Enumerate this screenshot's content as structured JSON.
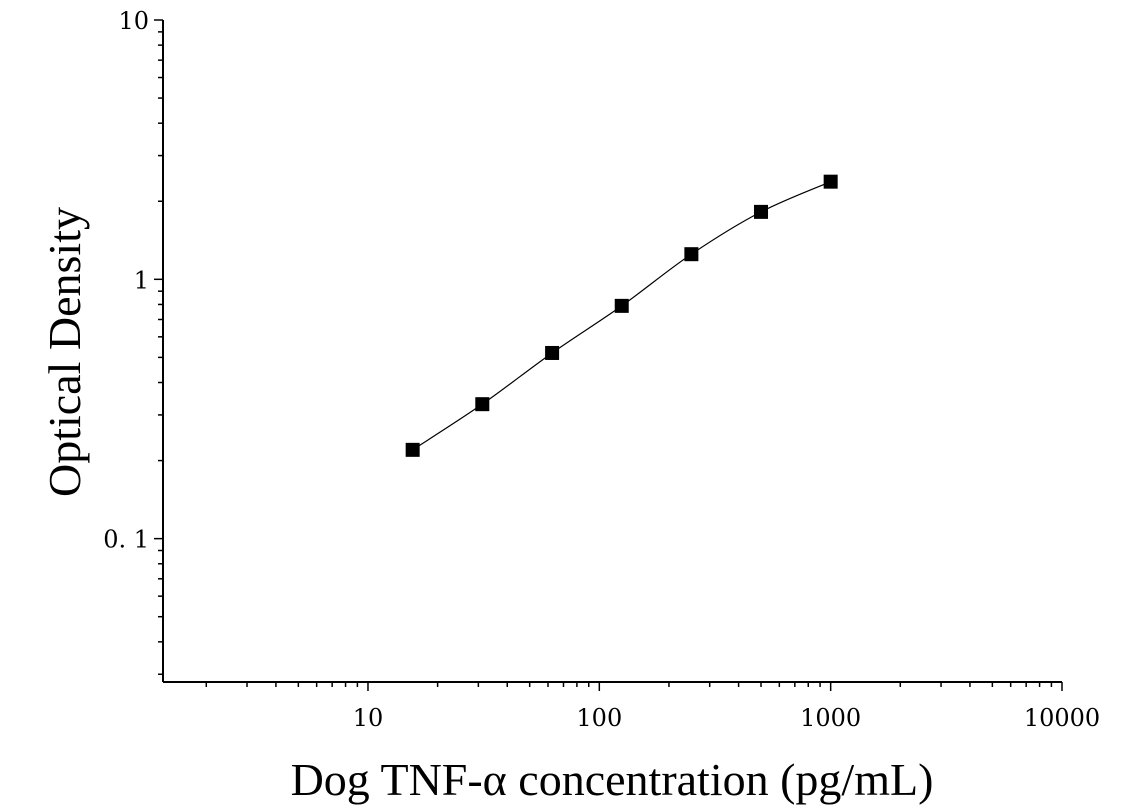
{
  "chart_data": {
    "type": "scatter",
    "title": "",
    "xlabel": "Dog TNF-α concentration (pg/mL)",
    "ylabel": "Optical Density",
    "x_scale": "log",
    "y_scale": "log",
    "xlim": [
      1.3,
      10000
    ],
    "ylim": [
      0.028,
      10
    ],
    "x_ticks": [
      {
        "value": 10,
        "label": "10"
      },
      {
        "value": 100,
        "label": "100"
      },
      {
        "value": 1000,
        "label": "1000"
      },
      {
        "value": 10000,
        "label": "10000"
      }
    ],
    "y_ticks": [
      {
        "value": 0.1,
        "label": "0. 1"
      },
      {
        "value": 1,
        "label": "1"
      },
      {
        "value": 10,
        "label": "10"
      }
    ],
    "grid": false,
    "legend": "none",
    "marker_color": "#000000",
    "line_color": "#000000",
    "series": [
      {
        "x": [
          15.6,
          31.2,
          62.5,
          125,
          250,
          500,
          1000
        ],
        "y": [
          0.22,
          0.33,
          0.52,
          0.79,
          1.25,
          1.82,
          2.38
        ]
      }
    ]
  }
}
